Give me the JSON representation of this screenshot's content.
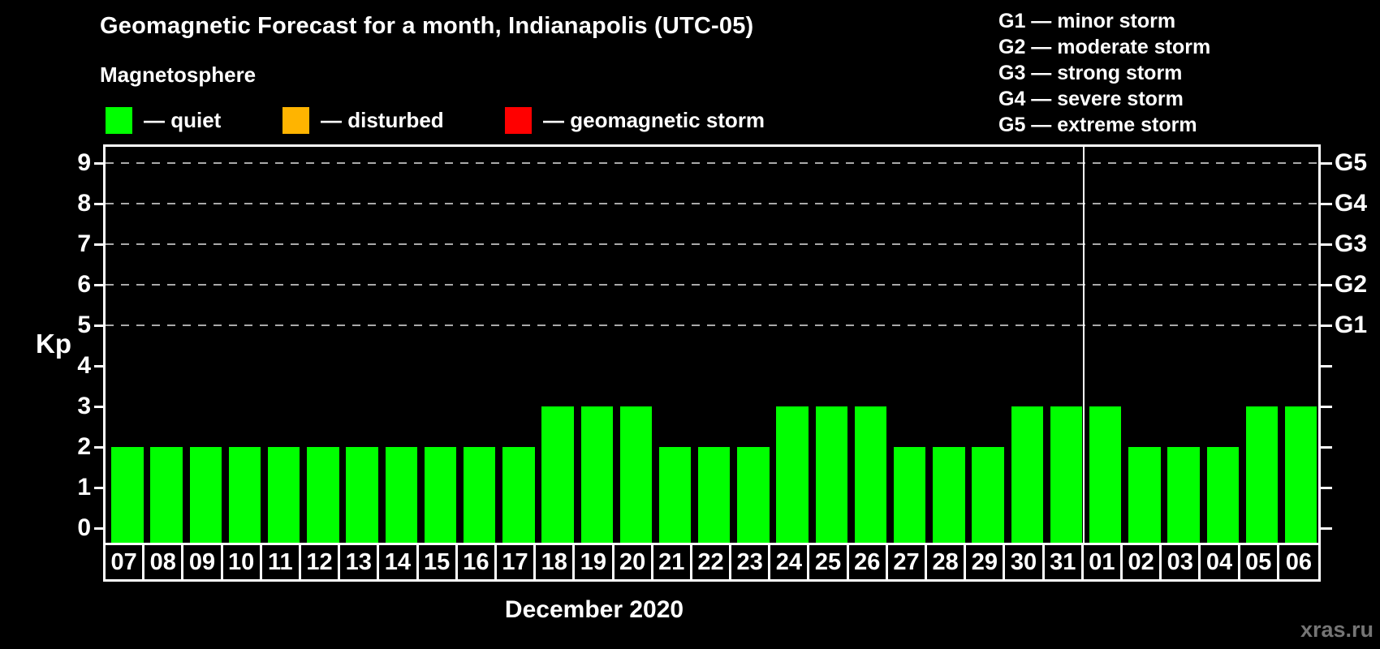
{
  "title": "Geomagnetic Forecast for a month, Indianapolis (UTC-05)",
  "subtitle": "Magnetosphere",
  "legend": [
    {
      "name": "quiet",
      "label": "— quiet",
      "color": "#00ff00"
    },
    {
      "name": "disturbed",
      "label": "— disturbed",
      "color": "#ffb400"
    },
    {
      "name": "geomagnetic-storm",
      "label": "— geomagnetic storm",
      "color": "#ff0000"
    }
  ],
  "storm_scale": [
    {
      "code": "G1",
      "label": "G1 — minor storm"
    },
    {
      "code": "G2",
      "label": "G2 — moderate storm"
    },
    {
      "code": "G3",
      "label": "G3 — strong storm"
    },
    {
      "code": "G4",
      "label": "G4 — severe storm"
    },
    {
      "code": "G5",
      "label": "G5 — extreme storm"
    }
  ],
  "watermark": "xras.ru",
  "chart_data": {
    "type": "bar",
    "title": "Geomagnetic Forecast for a month, Indianapolis (UTC-05)",
    "ylabel": "Kp",
    "xlabel": "December 2020",
    "month_label": "December 2020",
    "categories": [
      "07",
      "08",
      "09",
      "10",
      "11",
      "12",
      "13",
      "14",
      "15",
      "16",
      "17",
      "18",
      "19",
      "20",
      "21",
      "22",
      "23",
      "24",
      "25",
      "26",
      "27",
      "28",
      "29",
      "30",
      "31",
      "01",
      "02",
      "03",
      "04",
      "05",
      "06"
    ],
    "values": [
      2,
      2,
      2,
      2,
      2,
      2,
      2,
      2,
      2,
      2,
      2,
      3,
      3,
      3,
      2,
      2,
      2,
      3,
      3,
      3,
      2,
      2,
      2,
      3,
      3,
      3,
      2,
      2,
      2,
      3,
      3
    ],
    "bar_color": "#00ff00",
    "ylim": [
      -0.35,
      9.4
    ],
    "y_ticks": [
      0,
      1,
      2,
      3,
      4,
      5,
      6,
      7,
      8,
      9
    ],
    "gridline_levels": [
      5,
      6,
      7,
      8,
      9
    ],
    "right_axis": [
      {
        "label": "G1",
        "value": 5
      },
      {
        "label": "G2",
        "value": 6
      },
      {
        "label": "G3",
        "value": 7
      },
      {
        "label": "G4",
        "value": 8
      },
      {
        "label": "G5",
        "value": 9
      }
    ],
    "month_separator_after_index": 24,
    "grid": "horizontal dashed at G-storm levels",
    "legend_position": "top-left"
  }
}
